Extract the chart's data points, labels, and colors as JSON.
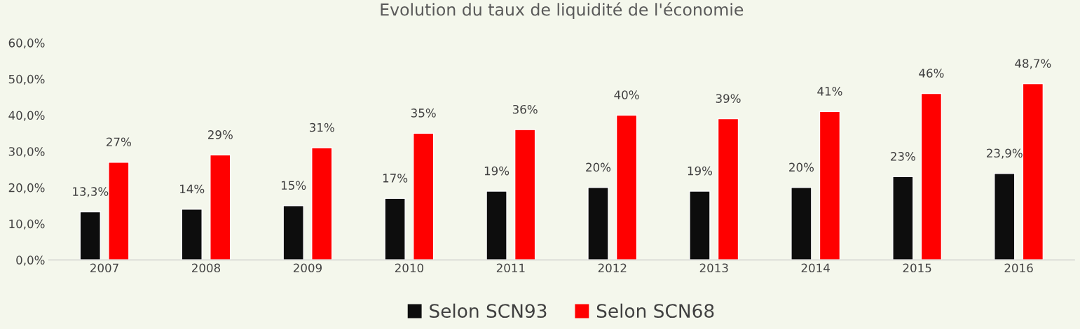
{
  "chart_data": {
    "type": "bar",
    "title": "Evolution du taux de liquidité de l'économie",
    "categories": [
      "2007",
      "2008",
      "2009",
      "2010",
      "2011",
      "2012",
      "2013",
      "2014",
      "2015",
      "2016"
    ],
    "series": [
      {
        "name": "Selon SCN93",
        "color": "#0d0d0d",
        "values": [
          13.3,
          14,
          15,
          17,
          19,
          20,
          19,
          20,
          23,
          23.9
        ],
        "value_labels": [
          "13,3%",
          "14%",
          "15%",
          "17%",
          "19%",
          "20%",
          "19%",
          "20%",
          "23%",
          "23,9%"
        ]
      },
      {
        "name": "Selon SCN68",
        "color": "#ff0000",
        "values": [
          27,
          29,
          31,
          35,
          36,
          40,
          39,
          41,
          46,
          48.7
        ],
        "value_labels": [
          "27%",
          "29%",
          "31%",
          "35%",
          "36%",
          "40%",
          "39%",
          "41%",
          "46%",
          "48,7%"
        ]
      }
    ],
    "ylim": [
      0,
      60
    ],
    "yticks": [
      {
        "value": 0,
        "label": "0,0%"
      },
      {
        "value": 10,
        "label": "10,0%"
      },
      {
        "value": 20,
        "label": "20,0%"
      },
      {
        "value": 30,
        "label": "30,0%"
      },
      {
        "value": 40,
        "label": "40,0%"
      },
      {
        "value": 50,
        "label": "50,0%"
      },
      {
        "value": 60,
        "label": "60,0%"
      }
    ],
    "grid": false,
    "legend": "bottom"
  }
}
